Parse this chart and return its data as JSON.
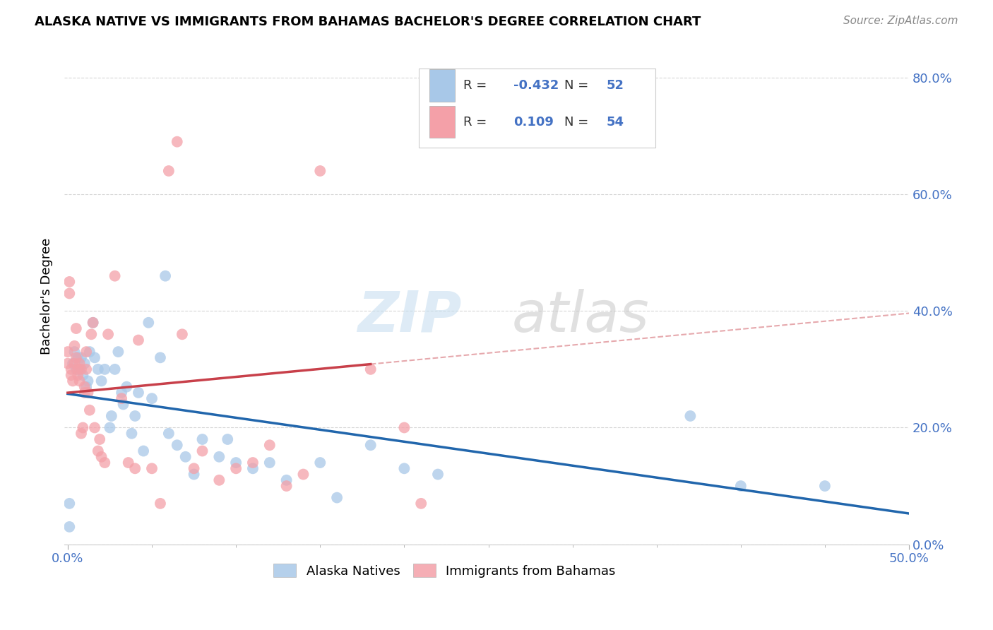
{
  "title": "ALASKA NATIVE VS IMMIGRANTS FROM BAHAMAS BACHELOR'S DEGREE CORRELATION CHART",
  "source": "Source: ZipAtlas.com",
  "ylabel": "Bachelor's Degree",
  "xlabel_blue": "Alaska Natives",
  "xlabel_pink": "Immigrants from Bahamas",
  "watermark_zip": "ZIP",
  "watermark_atlas": "atlas",
  "r_blue": -0.432,
  "n_blue": 52,
  "r_pink": 0.109,
  "n_pink": 54,
  "blue_color": "#a8c8e8",
  "pink_color": "#f4a0a8",
  "blue_line_color": "#2166ac",
  "pink_line_color": "#c8404a",
  "x_min": 0.0,
  "x_max": 0.5,
  "y_min": 0.0,
  "y_max": 0.85,
  "x_ticks": [
    0.0,
    0.5
  ],
  "y_ticks": [
    0.0,
    0.2,
    0.4,
    0.6,
    0.8
  ],
  "blue_points_x": [
    0.001,
    0.001,
    0.003,
    0.004,
    0.005,
    0.006,
    0.007,
    0.008,
    0.009,
    0.01,
    0.011,
    0.012,
    0.013,
    0.015,
    0.016,
    0.018,
    0.02,
    0.022,
    0.025,
    0.026,
    0.028,
    0.03,
    0.032,
    0.033,
    0.035,
    0.038,
    0.04,
    0.042,
    0.045,
    0.048,
    0.05,
    0.055,
    0.058,
    0.06,
    0.065,
    0.07,
    0.075,
    0.08,
    0.09,
    0.095,
    0.1,
    0.11,
    0.12,
    0.13,
    0.15,
    0.16,
    0.18,
    0.2,
    0.22,
    0.37,
    0.4,
    0.45
  ],
  "blue_points_y": [
    0.03,
    0.07,
    0.31,
    0.33,
    0.3,
    0.32,
    0.3,
    0.32,
    0.29,
    0.31,
    0.27,
    0.28,
    0.33,
    0.38,
    0.32,
    0.3,
    0.28,
    0.3,
    0.2,
    0.22,
    0.3,
    0.33,
    0.26,
    0.24,
    0.27,
    0.19,
    0.22,
    0.26,
    0.16,
    0.38,
    0.25,
    0.32,
    0.46,
    0.19,
    0.17,
    0.15,
    0.12,
    0.18,
    0.15,
    0.18,
    0.14,
    0.13,
    0.14,
    0.11,
    0.14,
    0.08,
    0.17,
    0.13,
    0.12,
    0.22,
    0.1,
    0.1
  ],
  "pink_points_x": [
    0.0,
    0.0,
    0.001,
    0.001,
    0.002,
    0.002,
    0.003,
    0.004,
    0.004,
    0.005,
    0.005,
    0.006,
    0.006,
    0.007,
    0.007,
    0.008,
    0.008,
    0.009,
    0.01,
    0.01,
    0.011,
    0.011,
    0.012,
    0.013,
    0.014,
    0.015,
    0.016,
    0.018,
    0.019,
    0.02,
    0.022,
    0.024,
    0.028,
    0.032,
    0.036,
    0.04,
    0.042,
    0.05,
    0.055,
    0.06,
    0.065,
    0.068,
    0.075,
    0.08,
    0.09,
    0.1,
    0.11,
    0.12,
    0.13,
    0.14,
    0.15,
    0.18,
    0.2,
    0.21
  ],
  "pink_points_y": [
    0.31,
    0.33,
    0.43,
    0.45,
    0.29,
    0.3,
    0.28,
    0.31,
    0.34,
    0.32,
    0.37,
    0.29,
    0.3,
    0.31,
    0.28,
    0.3,
    0.19,
    0.2,
    0.26,
    0.27,
    0.3,
    0.33,
    0.26,
    0.23,
    0.36,
    0.38,
    0.2,
    0.16,
    0.18,
    0.15,
    0.14,
    0.36,
    0.46,
    0.25,
    0.14,
    0.13,
    0.35,
    0.13,
    0.07,
    0.64,
    0.69,
    0.36,
    0.13,
    0.16,
    0.11,
    0.13,
    0.14,
    0.17,
    0.1,
    0.12,
    0.64,
    0.3,
    0.2,
    0.07
  ]
}
